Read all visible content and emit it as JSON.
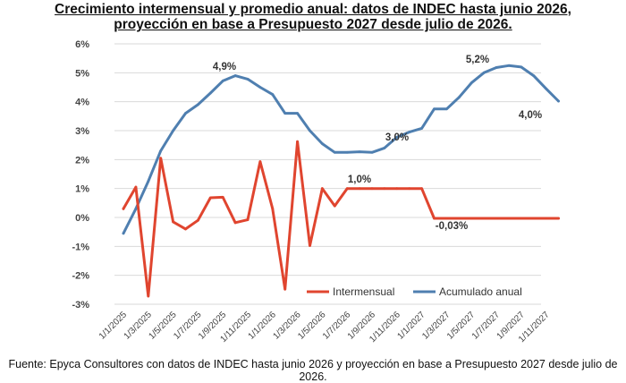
{
  "title_line1": "Crecimiento intermensual y promedio anual: datos de INDEC hasta junio 2026,",
  "title_line2": "proyección en base a Presupuesto 2027 desde julio de 2026.",
  "source": "Fuente: Epyca Consultores con datos de INDEC hasta junio 2026 y proyección en base a Presupuesto 2027 desde julio de 2026.",
  "chart_data": {
    "type": "line",
    "title": "Crecimiento intermensual y promedio anual: datos de INDEC hasta junio 2026, proyección en base a Presupuesto 2027 desde julio de 2026.",
    "ylim": [
      -3,
      6
    ],
    "yticks": [
      "6%",
      "5%",
      "4%",
      "3%",
      "2%",
      "1%",
      "0%",
      "-1%",
      "-2%",
      "-3%"
    ],
    "x_tick_labels": [
      "1/1/2025",
      "1/3/2025",
      "1/5/2025",
      "1/7/2025",
      "1/9/2025",
      "1/11/2025",
      "1/1/2026",
      "1/3/2026",
      "1/5/2026",
      "1/7/2026",
      "1/9/2026",
      "1/11/2026",
      "1/1/2027",
      "1/3/2027",
      "1/5/2027",
      "1/7/2027",
      "1/9/2027",
      "1/11/2027"
    ],
    "grid": true,
    "legend_position": "bottom-right",
    "colors": {
      "intermensual": "#e0452f",
      "acumulado": "#4f7fb0"
    },
    "series": [
      {
        "name": "Intermensual",
        "color": "#e0452f",
        "values": [
          0.3,
          1.05,
          -2.72,
          2.05,
          -0.15,
          -0.4,
          -0.1,
          0.68,
          0.7,
          -0.18,
          -0.08,
          1.93,
          0.3,
          -2.48,
          2.62,
          -0.97,
          1.0,
          0.4,
          1.0,
          1.0,
          1.0,
          1.0,
          1.0,
          1.0,
          1.0,
          -0.03,
          -0.03,
          -0.03,
          -0.03,
          -0.03,
          -0.03,
          -0.03,
          -0.03,
          -0.03,
          -0.03,
          -0.03
        ]
      },
      {
        "name": "Acumulado anual",
        "color": "#4f7fb0",
        "values": [
          -0.55,
          0.3,
          1.25,
          2.3,
          3.0,
          3.6,
          3.9,
          4.3,
          4.72,
          4.9,
          4.78,
          4.5,
          4.25,
          3.6,
          3.6,
          3.0,
          2.55,
          2.25,
          2.25,
          2.27,
          2.25,
          2.4,
          2.77,
          2.95,
          3.08,
          3.75,
          3.75,
          4.15,
          4.65,
          5.0,
          5.18,
          5.25,
          5.2,
          4.9,
          4.45,
          4.02
        ]
      }
    ],
    "annotations": [
      "4,9%",
      "5,2%",
      "3,0%",
      "4,0%",
      "1,0%",
      "-0,03%"
    ]
  }
}
